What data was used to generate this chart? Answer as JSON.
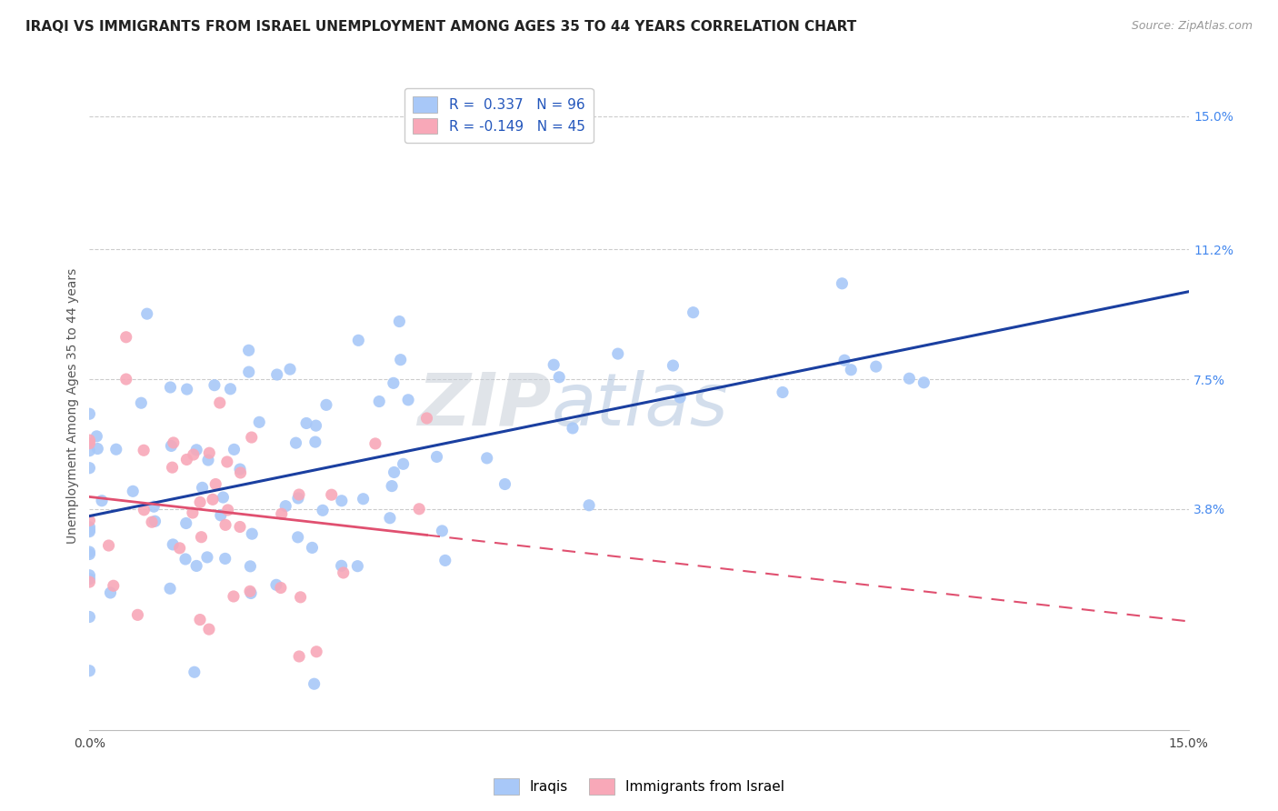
{
  "title": "IRAQI VS IMMIGRANTS FROM ISRAEL UNEMPLOYMENT AMONG AGES 35 TO 44 YEARS CORRELATION CHART",
  "source": "Source: ZipAtlas.com",
  "ylabel": "Unemployment Among Ages 35 to 44 years",
  "iraqi_R": 0.337,
  "iraqi_N": 96,
  "israel_R": -0.149,
  "israel_N": 45,
  "iraqi_color": "#a8c8f8",
  "israel_color": "#f8a8b8",
  "iraqi_line_color": "#1a3fa0",
  "israel_line_color": "#e05070",
  "legend_labels": [
    "Iraqis",
    "Immigrants from Israel"
  ],
  "background_color": "#ffffff",
  "grid_color": "#cccccc",
  "tick_label_color_right": "#4488ee",
  "xmin": 0.0,
  "xmax": 0.15,
  "ymin": -0.025,
  "ymax": 0.16,
  "ytick_values": [
    0.038,
    0.075,
    0.112,
    0.15
  ],
  "ytick_labels": [
    "3.8%",
    "7.5%",
    "11.2%",
    "15.0%"
  ],
  "watermark_text": "ZIPatlas",
  "watermark_color": "#ccd8ee",
  "legend1_text1": "R =  0.337   N = 96",
  "legend1_text2": "R = -0.149   N = 45"
}
